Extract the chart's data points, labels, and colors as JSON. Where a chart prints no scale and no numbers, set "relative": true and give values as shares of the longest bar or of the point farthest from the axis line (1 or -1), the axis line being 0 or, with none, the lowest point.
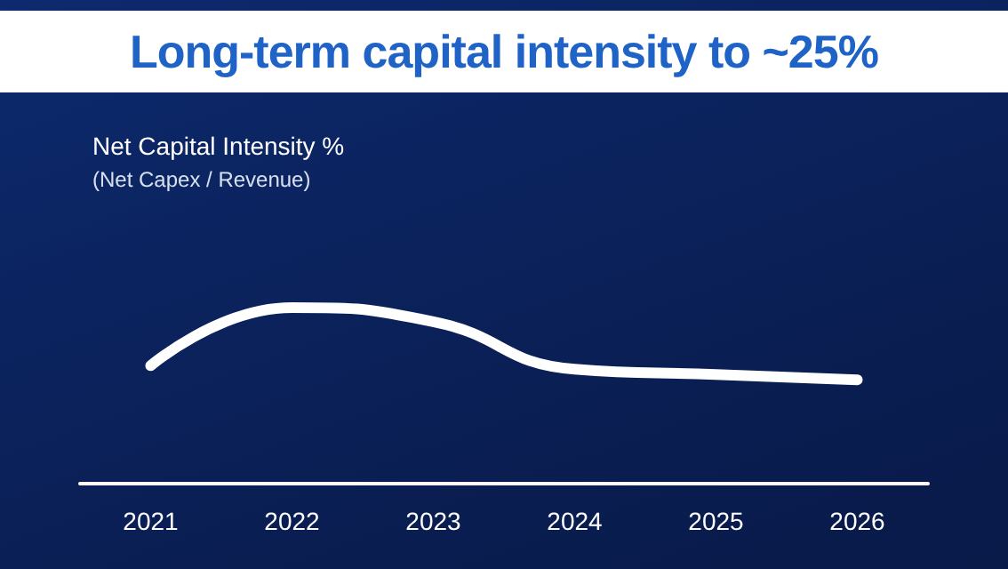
{
  "chart_data": {
    "type": "line",
    "title": "Long-term capital intensity to ~25%",
    "annotations": [
      "Net Capital Intensity %",
      "(Net Capex / Revenue)"
    ],
    "categories": [
      "2021",
      "2022",
      "2023",
      "2024",
      "2025",
      "2026"
    ],
    "series": [
      {
        "color": "#ffffff",
        "values": [
          0.67,
          1,
          0.92,
          0.65,
          0.62,
          0.59
        ]
      }
    ],
    "relative": true,
    "grid": false,
    "marker": "none",
    "line_style": "solid"
  }
}
